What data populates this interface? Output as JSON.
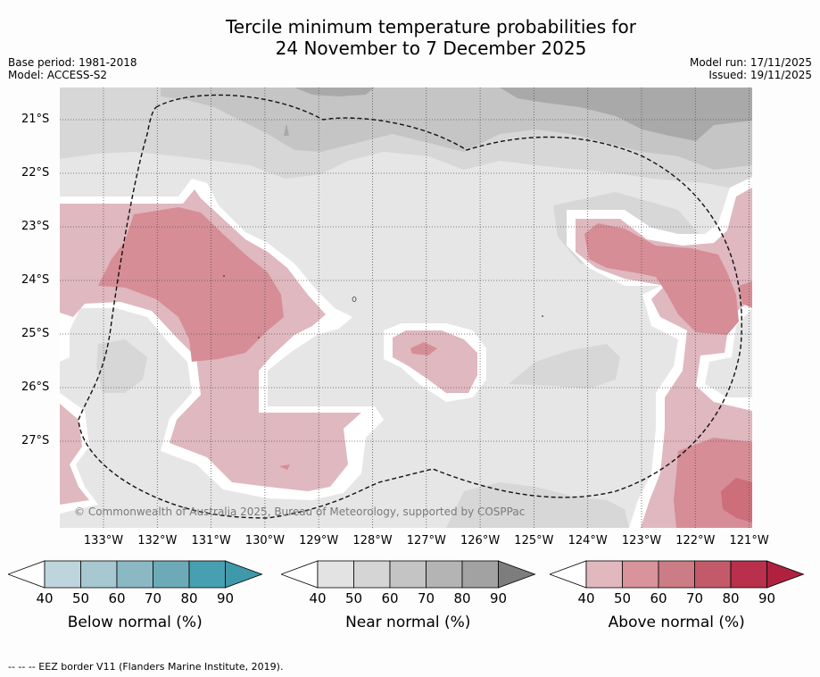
{
  "title_line1": "Tercile minimum temperature probabilities for",
  "title_line2": "24 November to 7 December 2025",
  "base_period": "Base period: 1981-2018",
  "model": "Model: ACCESS-S2",
  "model_run": "Model run: 17/11/2025",
  "issued": "Issued: 19/11/2025",
  "copyright": "© Commonwealth of Australia 2025, Bureau of Meteorology, supported by COSPPac",
  "footnote": "--  --  -- EEZ border V11 (Flanders Marine Institute, 2019).",
  "lat_labels": [
    "21°S",
    "22°S",
    "23°S",
    "24°S",
    "25°S",
    "26°S",
    "27°S"
  ],
  "lon_labels": [
    "133°W",
    "132°W",
    "131°W",
    "130°W",
    "129°W",
    "128°W",
    "127°W",
    "126°W",
    "125°W",
    "124°W",
    "123°W",
    "122°W",
    "121°W"
  ],
  "colorbars": [
    {
      "title": "Below normal (%)",
      "ticks": [
        "40",
        "50",
        "60",
        "70",
        "80",
        "90"
      ],
      "colors": [
        "#ffffff",
        "#bfd5dd",
        "#a7c8d0",
        "#8ab9c4",
        "#6daab7",
        "#47a0b1",
        "#3e99aa"
      ]
    },
    {
      "title": "Near normal (%)",
      "ticks": [
        "40",
        "50",
        "60",
        "70",
        "80",
        "90"
      ],
      "colors": [
        "#ffffff",
        "#e3e3e3",
        "#d5d5d5",
        "#c4c4c4",
        "#b4b4b4",
        "#a2a2a2",
        "#7d7d7d"
      ]
    },
    {
      "title": "Above normal (%)",
      "ticks": [
        "40",
        "50",
        "60",
        "70",
        "80",
        "90"
      ],
      "colors": [
        "#ffffff",
        "#e2b8bf",
        "#d8939b",
        "#cc7c84",
        "#c35a69",
        "#b8304b",
        "#b02140"
      ]
    }
  ],
  "colors": {
    "near_40": "#e6e6e6",
    "near_50": "#d7d7d7",
    "near_60": "#c5c5c5",
    "near_70": "#a9a9a9",
    "above_40": "#e0b8bf",
    "above_50": "#d68d96",
    "above_60": "#cd6e7b",
    "no_signal": "#ffffff"
  }
}
